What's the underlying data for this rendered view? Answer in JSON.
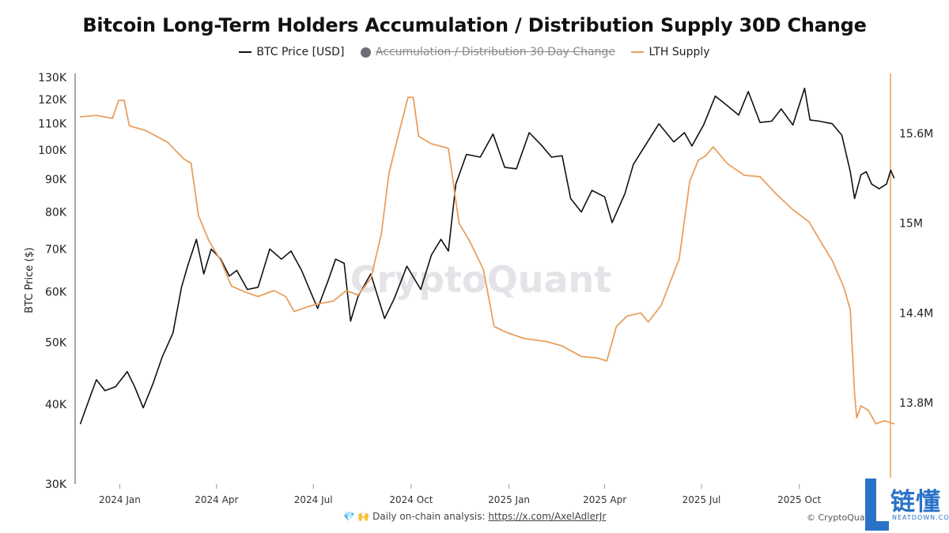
{
  "chart_data": {
    "type": "line",
    "title": "Bitcoin Long-Term Holders Accumulation / Distribution Supply 30D Change",
    "legend": {
      "placement": "top-center",
      "entries": [
        {
          "name": "BTC Price [USD]",
          "color": "#111111",
          "style": "line"
        },
        {
          "name": "Accumulation / Distribution 30 Day Change",
          "color": "#6e6e78",
          "style": "dot",
          "hidden": true
        },
        {
          "name": "LTH Supply",
          "color": "#e8a060",
          "style": "line"
        }
      ]
    },
    "x_axis": {
      "type": "date",
      "range": [
        "2023-11-20",
        "2025-12-25"
      ],
      "ticks": [
        {
          "label": "2024 Jan",
          "date": "2024-01-01"
        },
        {
          "label": "2024 Apr",
          "date": "2024-04-01"
        },
        {
          "label": "2024 Jul",
          "date": "2024-07-01"
        },
        {
          "label": "2024 Oct",
          "date": "2024-10-01"
        },
        {
          "label": "2025 Jan",
          "date": "2025-01-01"
        },
        {
          "label": "2025 Apr",
          "date": "2025-04-01"
        },
        {
          "label": "2025 Jul",
          "date": "2025-07-01"
        },
        {
          "label": "2025 Oct",
          "date": "2025-10-01"
        }
      ]
    },
    "y_left": {
      "label": "BTC Price ($)",
      "scale": "log",
      "range": [
        30000,
        130000
      ],
      "ticks": [
        {
          "label": "30K",
          "value": 30000
        },
        {
          "label": "40K",
          "value": 40000
        },
        {
          "label": "50K",
          "value": 50000
        },
        {
          "label": "60K",
          "value": 60000
        },
        {
          "label": "70K",
          "value": 70000
        },
        {
          "label": "80K",
          "value": 80000
        },
        {
          "label": "90K",
          "value": 90000
        },
        {
          "label": "100K",
          "value": 100000
        },
        {
          "label": "110K",
          "value": 110000
        },
        {
          "label": "120K",
          "value": 120000
        },
        {
          "label": "130K",
          "value": 130000
        }
      ]
    },
    "y_right": {
      "label": "",
      "scale": "linear",
      "range": [
        13300000,
        16000000
      ],
      "ticks": [
        {
          "label": "13.8M",
          "value": 13800000
        },
        {
          "label": "14.4M",
          "value": 14400000
        },
        {
          "label": "15M",
          "value": 15000000
        },
        {
          "label": "15.6M",
          "value": 15600000
        }
      ]
    },
    "grid": false,
    "series": [
      {
        "name": "BTC Price [USD]",
        "axis": "left",
        "color": "#111111",
        "points": [
          [
            "2023-11-25",
            37300
          ],
          [
            "2023-12-05",
            41500
          ],
          [
            "2023-12-10",
            43700
          ],
          [
            "2023-12-18",
            42000
          ],
          [
            "2023-12-28",
            42600
          ],
          [
            "2024-01-08",
            45000
          ],
          [
            "2024-01-15",
            42600
          ],
          [
            "2024-01-23",
            39500
          ],
          [
            "2024-02-01",
            43000
          ],
          [
            "2024-02-10",
            47500
          ],
          [
            "2024-02-20",
            51700
          ],
          [
            "2024-02-28",
            61000
          ],
          [
            "2024-03-05",
            66000
          ],
          [
            "2024-03-13",
            72500
          ],
          [
            "2024-03-20",
            64000
          ],
          [
            "2024-03-27",
            70000
          ],
          [
            "2024-04-05",
            67500
          ],
          [
            "2024-04-13",
            63500
          ],
          [
            "2024-04-20",
            64800
          ],
          [
            "2024-04-30",
            60500
          ],
          [
            "2024-05-10",
            61000
          ],
          [
            "2024-05-21",
            70000
          ],
          [
            "2024-06-01",
            67500
          ],
          [
            "2024-06-10",
            69500
          ],
          [
            "2024-06-20",
            64800
          ],
          [
            "2024-07-05",
            56500
          ],
          [
            "2024-07-15",
            62500
          ],
          [
            "2024-07-22",
            67500
          ],
          [
            "2024-07-30",
            66500
          ],
          [
            "2024-08-05",
            54000
          ],
          [
            "2024-08-12",
            59000
          ],
          [
            "2024-08-24",
            64000
          ],
          [
            "2024-09-06",
            54500
          ],
          [
            "2024-09-15",
            58500
          ],
          [
            "2024-09-27",
            65800
          ],
          [
            "2024-10-10",
            60500
          ],
          [
            "2024-10-20",
            68500
          ],
          [
            "2024-10-29",
            72500
          ],
          [
            "2024-11-05",
            69500
          ],
          [
            "2024-11-12",
            88500
          ],
          [
            "2024-11-22",
            98500
          ],
          [
            "2024-12-05",
            97500
          ],
          [
            "2024-12-17",
            106000
          ],
          [
            "2024-12-28",
            94000
          ],
          [
            "2025-01-08",
            93500
          ],
          [
            "2025-01-20",
            106500
          ],
          [
            "2025-01-31",
            102000
          ],
          [
            "2025-02-10",
            97500
          ],
          [
            "2025-02-20",
            98000
          ],
          [
            "2025-02-28",
            84000
          ],
          [
            "2025-03-10",
            80000
          ],
          [
            "2025-03-20",
            86500
          ],
          [
            "2025-04-01",
            84500
          ],
          [
            "2025-04-08",
            77000
          ],
          [
            "2025-04-20",
            85500
          ],
          [
            "2025-04-28",
            95000
          ],
          [
            "2025-05-12",
            103500
          ],
          [
            "2025-05-22",
            110000
          ],
          [
            "2025-06-05",
            103000
          ],
          [
            "2025-06-15",
            106500
          ],
          [
            "2025-06-22",
            101500
          ],
          [
            "2025-07-03",
            109500
          ],
          [
            "2025-07-14",
            121500
          ],
          [
            "2025-07-25",
            117500
          ],
          [
            "2025-08-05",
            113500
          ],
          [
            "2025-08-14",
            123500
          ],
          [
            "2025-08-25",
            110500
          ],
          [
            "2025-09-05",
            111000
          ],
          [
            "2025-09-14",
            116000
          ],
          [
            "2025-09-25",
            109500
          ],
          [
            "2025-10-06",
            125000
          ],
          [
            "2025-10-11",
            111500
          ],
          [
            "2025-10-20",
            111000
          ],
          [
            "2025-11-01",
            110000
          ],
          [
            "2025-11-10",
            105500
          ],
          [
            "2025-11-18",
            92500
          ],
          [
            "2025-11-22",
            84000
          ],
          [
            "2025-11-28",
            91500
          ],
          [
            "2025-12-03",
            92500
          ],
          [
            "2025-12-08",
            88500
          ],
          [
            "2025-12-15",
            87000
          ],
          [
            "2025-12-22",
            88500
          ],
          [
            "2025-12-26",
            93000
          ],
          [
            "2025-12-29",
            90500
          ]
        ]
      },
      {
        "name": "LTH Supply",
        "axis": "right",
        "color": "#e8a060",
        "points": [
          [
            "2023-11-25",
            15710000
          ],
          [
            "2023-12-10",
            15720000
          ],
          [
            "2023-12-25",
            15700000
          ],
          [
            "2023-12-31",
            15820000
          ],
          [
            "2024-01-05",
            15820000
          ],
          [
            "2024-01-10",
            15650000
          ],
          [
            "2024-01-25",
            15620000
          ],
          [
            "2024-02-15",
            15540000
          ],
          [
            "2024-03-01",
            15430000
          ],
          [
            "2024-03-08",
            15400000
          ],
          [
            "2024-03-15",
            15050000
          ],
          [
            "2024-03-25",
            14880000
          ],
          [
            "2024-04-05",
            14750000
          ],
          [
            "2024-04-15",
            14580000
          ],
          [
            "2024-04-28",
            14540000
          ],
          [
            "2024-05-10",
            14510000
          ],
          [
            "2024-05-25",
            14550000
          ],
          [
            "2024-06-05",
            14510000
          ],
          [
            "2024-06-13",
            14410000
          ],
          [
            "2024-06-25",
            14440000
          ],
          [
            "2024-07-05",
            14460000
          ],
          [
            "2024-07-20",
            14480000
          ],
          [
            "2024-08-01",
            14550000
          ],
          [
            "2024-08-12",
            14520000
          ],
          [
            "2024-08-24",
            14630000
          ],
          [
            "2024-09-03",
            14930000
          ],
          [
            "2024-09-10",
            15330000
          ],
          [
            "2024-09-18",
            15560000
          ],
          [
            "2024-09-28",
            15840000
          ],
          [
            "2024-10-03",
            15840000
          ],
          [
            "2024-10-08",
            15580000
          ],
          [
            "2024-10-20",
            15530000
          ],
          [
            "2024-11-05",
            15500000
          ],
          [
            "2024-11-15",
            15000000
          ],
          [
            "2024-11-25",
            14880000
          ],
          [
            "2024-12-08",
            14690000
          ],
          [
            "2024-12-18",
            14310000
          ],
          [
            "2024-12-30",
            14270000
          ],
          [
            "2025-01-15",
            14230000
          ],
          [
            "2025-02-05",
            14210000
          ],
          [
            "2025-02-20",
            14180000
          ],
          [
            "2025-03-10",
            14110000
          ],
          [
            "2025-03-25",
            14100000
          ],
          [
            "2025-04-03",
            14080000
          ],
          [
            "2025-04-12",
            14310000
          ],
          [
            "2025-04-22",
            14380000
          ],
          [
            "2025-05-05",
            14400000
          ],
          [
            "2025-05-12",
            14340000
          ],
          [
            "2025-05-24",
            14450000
          ],
          [
            "2025-05-30",
            14560000
          ],
          [
            "2025-06-10",
            14760000
          ],
          [
            "2025-06-20",
            15280000
          ],
          [
            "2025-06-28",
            15420000
          ],
          [
            "2025-07-05",
            15450000
          ],
          [
            "2025-07-12",
            15510000
          ],
          [
            "2025-07-25",
            15400000
          ],
          [
            "2025-08-10",
            15320000
          ],
          [
            "2025-08-25",
            15310000
          ],
          [
            "2025-09-10",
            15190000
          ],
          [
            "2025-09-25",
            15090000
          ],
          [
            "2025-10-10",
            15010000
          ],
          [
            "2025-10-20",
            14890000
          ],
          [
            "2025-11-01",
            14750000
          ],
          [
            "2025-11-12",
            14570000
          ],
          [
            "2025-11-18",
            14420000
          ],
          [
            "2025-11-22",
            13860000
          ],
          [
            "2025-11-24",
            13700000
          ],
          [
            "2025-11-28",
            13780000
          ],
          [
            "2025-12-05",
            13750000
          ],
          [
            "2025-12-12",
            13660000
          ],
          [
            "2025-12-20",
            13680000
          ],
          [
            "2025-12-29",
            13660000
          ]
        ]
      }
    ],
    "watermark": "CryptoQuant"
  },
  "footer": {
    "icons": "💎 🙌",
    "text": "Daily on-chain analysis: ",
    "link": "https://x.com/AxelAdlerJr"
  },
  "copyright": "© CryptoQua",
  "logo": {
    "cn_text": "链懂",
    "sub_text": "NEATDOWN.COM",
    "color": "#2a72c8"
  }
}
